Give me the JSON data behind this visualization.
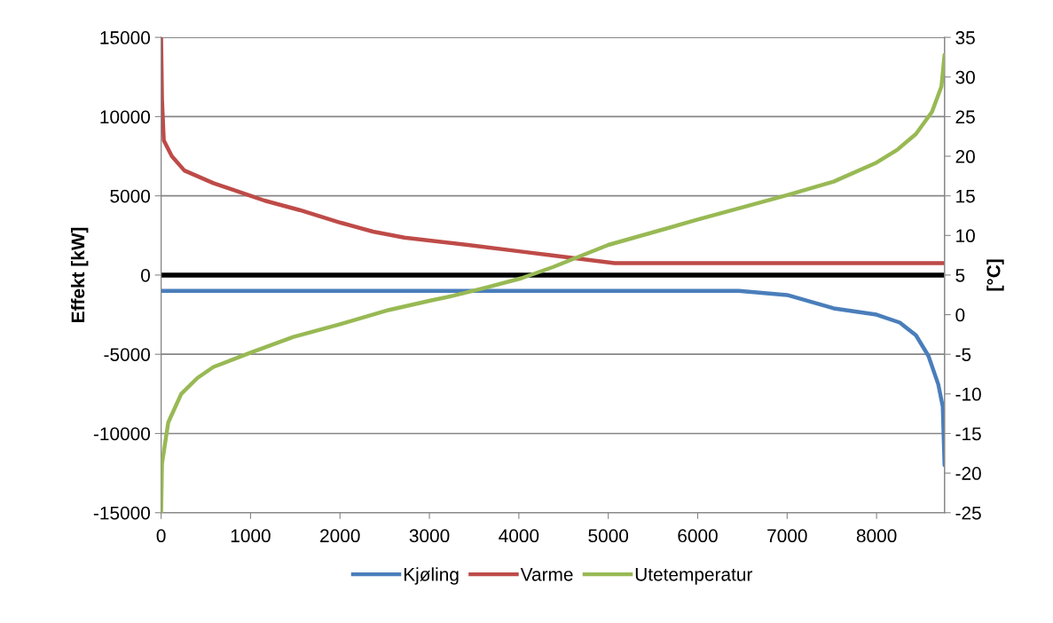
{
  "chart_data": {
    "type": "line",
    "ylabel": "Effekt [kW]",
    "y2label": "[°C]",
    "xlim": [
      0,
      8760
    ],
    "xticks": [
      0,
      1000,
      2000,
      3000,
      4000,
      5000,
      6000,
      7000,
      8000
    ],
    "ylim": [
      -15000,
      15000
    ],
    "yticks": [
      -15000,
      -10000,
      -5000,
      0,
      5000,
      10000,
      15000
    ],
    "y2lim": [
      -25,
      35
    ],
    "y2ticks": [
      -25,
      -20,
      -15,
      -10,
      -5,
      0,
      5,
      10,
      15,
      20,
      25,
      30,
      35
    ],
    "grid": "y",
    "legend": "bottom",
    "marker": "none",
    "line_style": "solid",
    "ref_lines": [
      {
        "axis": "y",
        "value": 0,
        "color": "#000000"
      }
    ],
    "series": [
      {
        "name": "Kjøling",
        "color": "#4a7ebb",
        "x": [
          0,
          1000,
          2000,
          3000,
          4000,
          5000,
          6000,
          6460,
          7000,
          7520,
          8000,
          8260,
          8440,
          8580,
          8690,
          8740,
          8760
        ],
        "values": [
          -1000,
          -1000,
          -1000,
          -1000,
          -1000,
          -1000,
          -1000,
          -1000,
          -1260,
          -2100,
          -2500,
          -3000,
          -3800,
          -5100,
          -6900,
          -8300,
          -12000
        ]
      },
      {
        "name": "Varme",
        "color": "#be4b48",
        "x": [
          0,
          10,
          30,
          120,
          260,
          585,
          1000,
          1155,
          1550,
          2010,
          2370,
          2720,
          3430,
          4000,
          4350,
          5070,
          6000,
          7000,
          8000,
          8760
        ],
        "values": [
          15000,
          11100,
          8500,
          7500,
          6600,
          5800,
          5000,
          4700,
          4100,
          3300,
          2740,
          2360,
          1900,
          1500,
          1260,
          750,
          750,
          750,
          750,
          750
        ]
      },
      {
        "name": "Utetemperatur",
        "color": "#98b954",
        "axis": "y2",
        "x": [
          0,
          10,
          80,
          225,
          405,
          585,
          1000,
          1480,
          2000,
          2550,
          3020,
          3270,
          3630,
          4030,
          4380,
          5000,
          6000,
          7000,
          7520,
          8000,
          8230,
          8440,
          8620,
          8725,
          8760
        ],
        "values": [
          -25,
          -18.8,
          -13.6,
          -10,
          -8,
          -6.6,
          -4.8,
          -2.8,
          -1.2,
          0.6,
          1.8,
          2.4,
          3.4,
          4.6,
          6,
          8.8,
          12,
          15.1,
          16.8,
          19.2,
          20.8,
          22.8,
          25.6,
          28.8,
          32.8
        ]
      }
    ]
  }
}
